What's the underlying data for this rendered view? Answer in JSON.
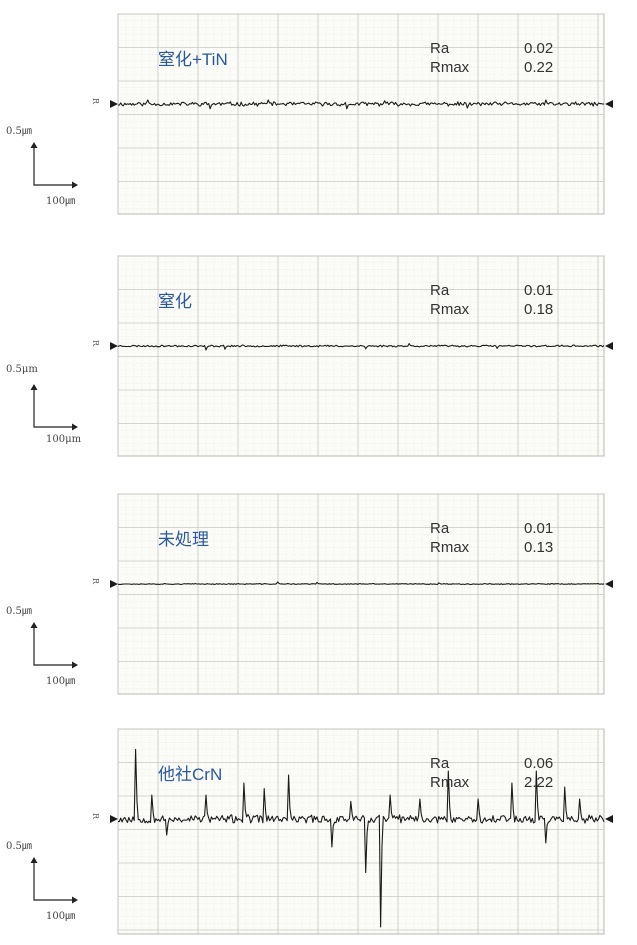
{
  "chart_data": [
    {
      "type": "line",
      "title": "窒化+TiN",
      "stats": [
        {
          "label": "Ra",
          "value": "0.02"
        },
        {
          "label": "Rmax",
          "value": "0.22"
        }
      ],
      "scale_vertical": "0.5㎛",
      "scale_horizontal": "100㎛",
      "ref_label": "R",
      "y_unit": "μm",
      "series": [
        {
          "amp": 0.022,
          "spikes": [
            [
              0.06,
              0.05
            ],
            [
              0.19,
              -0.06
            ],
            [
              0.31,
              0.05
            ],
            [
              0.47,
              -0.06
            ],
            [
              0.55,
              0.04
            ],
            [
              0.72,
              -0.05
            ],
            [
              0.88,
              0.05
            ]
          ],
          "seed": 11
        }
      ]
    },
    {
      "type": "line",
      "title": "窒化",
      "stats": [
        {
          "label": "Ra",
          "value": "0.01"
        },
        {
          "label": "Rmax",
          "value": "0.18"
        }
      ],
      "scale_vertical": "0.5μm",
      "scale_horizontal": "100μm",
      "ref_label": "R",
      "y_unit": "μm",
      "series": [
        {
          "amp": 0.01,
          "spikes": [
            [
              0.18,
              -0.05
            ],
            [
              0.22,
              -0.04
            ],
            [
              0.51,
              -0.035
            ],
            [
              0.6,
              0.03
            ],
            [
              0.78,
              -0.03
            ]
          ],
          "seed": 23
        }
      ]
    },
    {
      "type": "line",
      "title": "未処理",
      "stats": [
        {
          "label": "Ra",
          "value": "0.01"
        },
        {
          "label": "Rmax",
          "value": "0.13"
        }
      ],
      "scale_vertical": "0.5㎛",
      "scale_horizontal": "100㎛",
      "ref_label": "R",
      "y_unit": "μm",
      "series": [
        {
          "amp": 0.005,
          "spikes": [
            [
              0.33,
              0.025
            ],
            [
              0.41,
              0.02
            ],
            [
              0.66,
              0.015
            ]
          ],
          "seed": 37
        }
      ]
    },
    {
      "type": "line",
      "title": "他社CrN",
      "stats": [
        {
          "label": "Ra",
          "value": "0.06"
        },
        {
          "label": "Rmax",
          "value": "2.22"
        }
      ],
      "scale_vertical": "0.5㎛",
      "scale_horizontal": "100㎛",
      "ref_label": "R",
      "y_unit": "μm",
      "series": [
        {
          "amp": 0.045,
          "spikes": [
            [
              0.035,
              0.87
            ],
            [
              0.07,
              0.3
            ],
            [
              0.1,
              -0.2
            ],
            [
              0.18,
              0.3
            ],
            [
              0.26,
              0.45
            ],
            [
              0.3,
              0.38
            ],
            [
              0.35,
              0.55
            ],
            [
              0.44,
              -0.35
            ],
            [
              0.48,
              0.22
            ],
            [
              0.51,
              -0.67
            ],
            [
              0.54,
              -1.35
            ],
            [
              0.56,
              0.3
            ],
            [
              0.62,
              0.25
            ],
            [
              0.68,
              0.6
            ],
            [
              0.74,
              0.25
            ],
            [
              0.81,
              0.45
            ],
            [
              0.86,
              0.6
            ],
            [
              0.88,
              -0.3
            ],
            [
              0.92,
              0.4
            ],
            [
              0.95,
              0.25
            ]
          ],
          "seed": 53
        }
      ]
    }
  ]
}
